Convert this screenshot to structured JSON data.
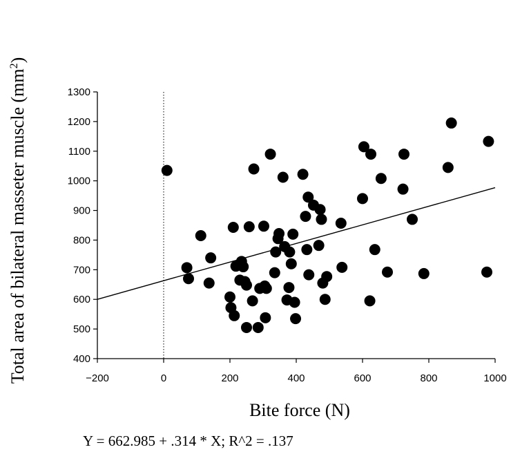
{
  "chart_data": {
    "type": "scatter",
    "xlabel": "Bite force (N)",
    "ylabel_parts": [
      "Total area of bilateral masseter muscle (mm",
      "2",
      ")"
    ],
    "xlim": [
      -200,
      1000
    ],
    "ylim": [
      400,
      1300
    ],
    "x_ticks": [
      -200,
      0,
      200,
      400,
      600,
      800,
      1000
    ],
    "x_tick_labels": [
      "−200",
      "0",
      "200",
      "400",
      "600",
      "800",
      "1000"
    ],
    "y_ticks": [
      400,
      500,
      600,
      700,
      800,
      900,
      1000,
      1100,
      1200,
      1300
    ],
    "y_tick_labels": [
      "400",
      "500",
      "600",
      "700",
      "800",
      "900",
      "1000",
      "1100",
      "1200",
      "1300"
    ],
    "grid": false,
    "reference_line_x": 0,
    "regression": {
      "intercept": 662.985,
      "slope": 0.314
    },
    "equation": "Y = 662.985 + .314 * X; R^2 = .137",
    "marker_color": "#000000",
    "points": [
      [
        10,
        1035
      ],
      [
        70,
        707
      ],
      [
        75,
        670
      ],
      [
        112,
        815
      ],
      [
        137,
        655
      ],
      [
        142,
        740
      ],
      [
        200,
        608
      ],
      [
        203,
        572
      ],
      [
        210,
        843
      ],
      [
        213,
        545
      ],
      [
        218,
        712
      ],
      [
        230,
        665
      ],
      [
        235,
        728
      ],
      [
        240,
        710
      ],
      [
        245,
        660
      ],
      [
        250,
        648
      ],
      [
        250,
        505
      ],
      [
        258,
        845
      ],
      [
        268,
        595
      ],
      [
        272,
        1040
      ],
      [
        285,
        505
      ],
      [
        290,
        637
      ],
      [
        302,
        847
      ],
      [
        305,
        645
      ],
      [
        307,
        538
      ],
      [
        310,
        637
      ],
      [
        322,
        1090
      ],
      [
        335,
        690
      ],
      [
        338,
        760
      ],
      [
        345,
        805
      ],
      [
        348,
        822
      ],
      [
        360,
        1012
      ],
      [
        365,
        778
      ],
      [
        372,
        598
      ],
      [
        378,
        640
      ],
      [
        380,
        760
      ],
      [
        385,
        720
      ],
      [
        390,
        820
      ],
      [
        395,
        590
      ],
      [
        398,
        535
      ],
      [
        420,
        1022
      ],
      [
        428,
        880
      ],
      [
        432,
        768
      ],
      [
        436,
        945
      ],
      [
        438,
        683
      ],
      [
        452,
        918
      ],
      [
        468,
        782
      ],
      [
        472,
        903
      ],
      [
        476,
        870
      ],
      [
        480,
        655
      ],
      [
        487,
        600
      ],
      [
        492,
        677
      ],
      [
        535,
        857
      ],
      [
        538,
        708
      ],
      [
        600,
        940
      ],
      [
        604,
        1115
      ],
      [
        622,
        595
      ],
      [
        625,
        1090
      ],
      [
        637,
        768
      ],
      [
        656,
        1008
      ],
      [
        675,
        692
      ],
      [
        722,
        972
      ],
      [
        725,
        1090
      ],
      [
        750,
        870
      ],
      [
        785,
        687
      ],
      [
        858,
        1045
      ],
      [
        868,
        1195
      ],
      [
        975,
        692
      ],
      [
        980,
        1133
      ]
    ]
  }
}
